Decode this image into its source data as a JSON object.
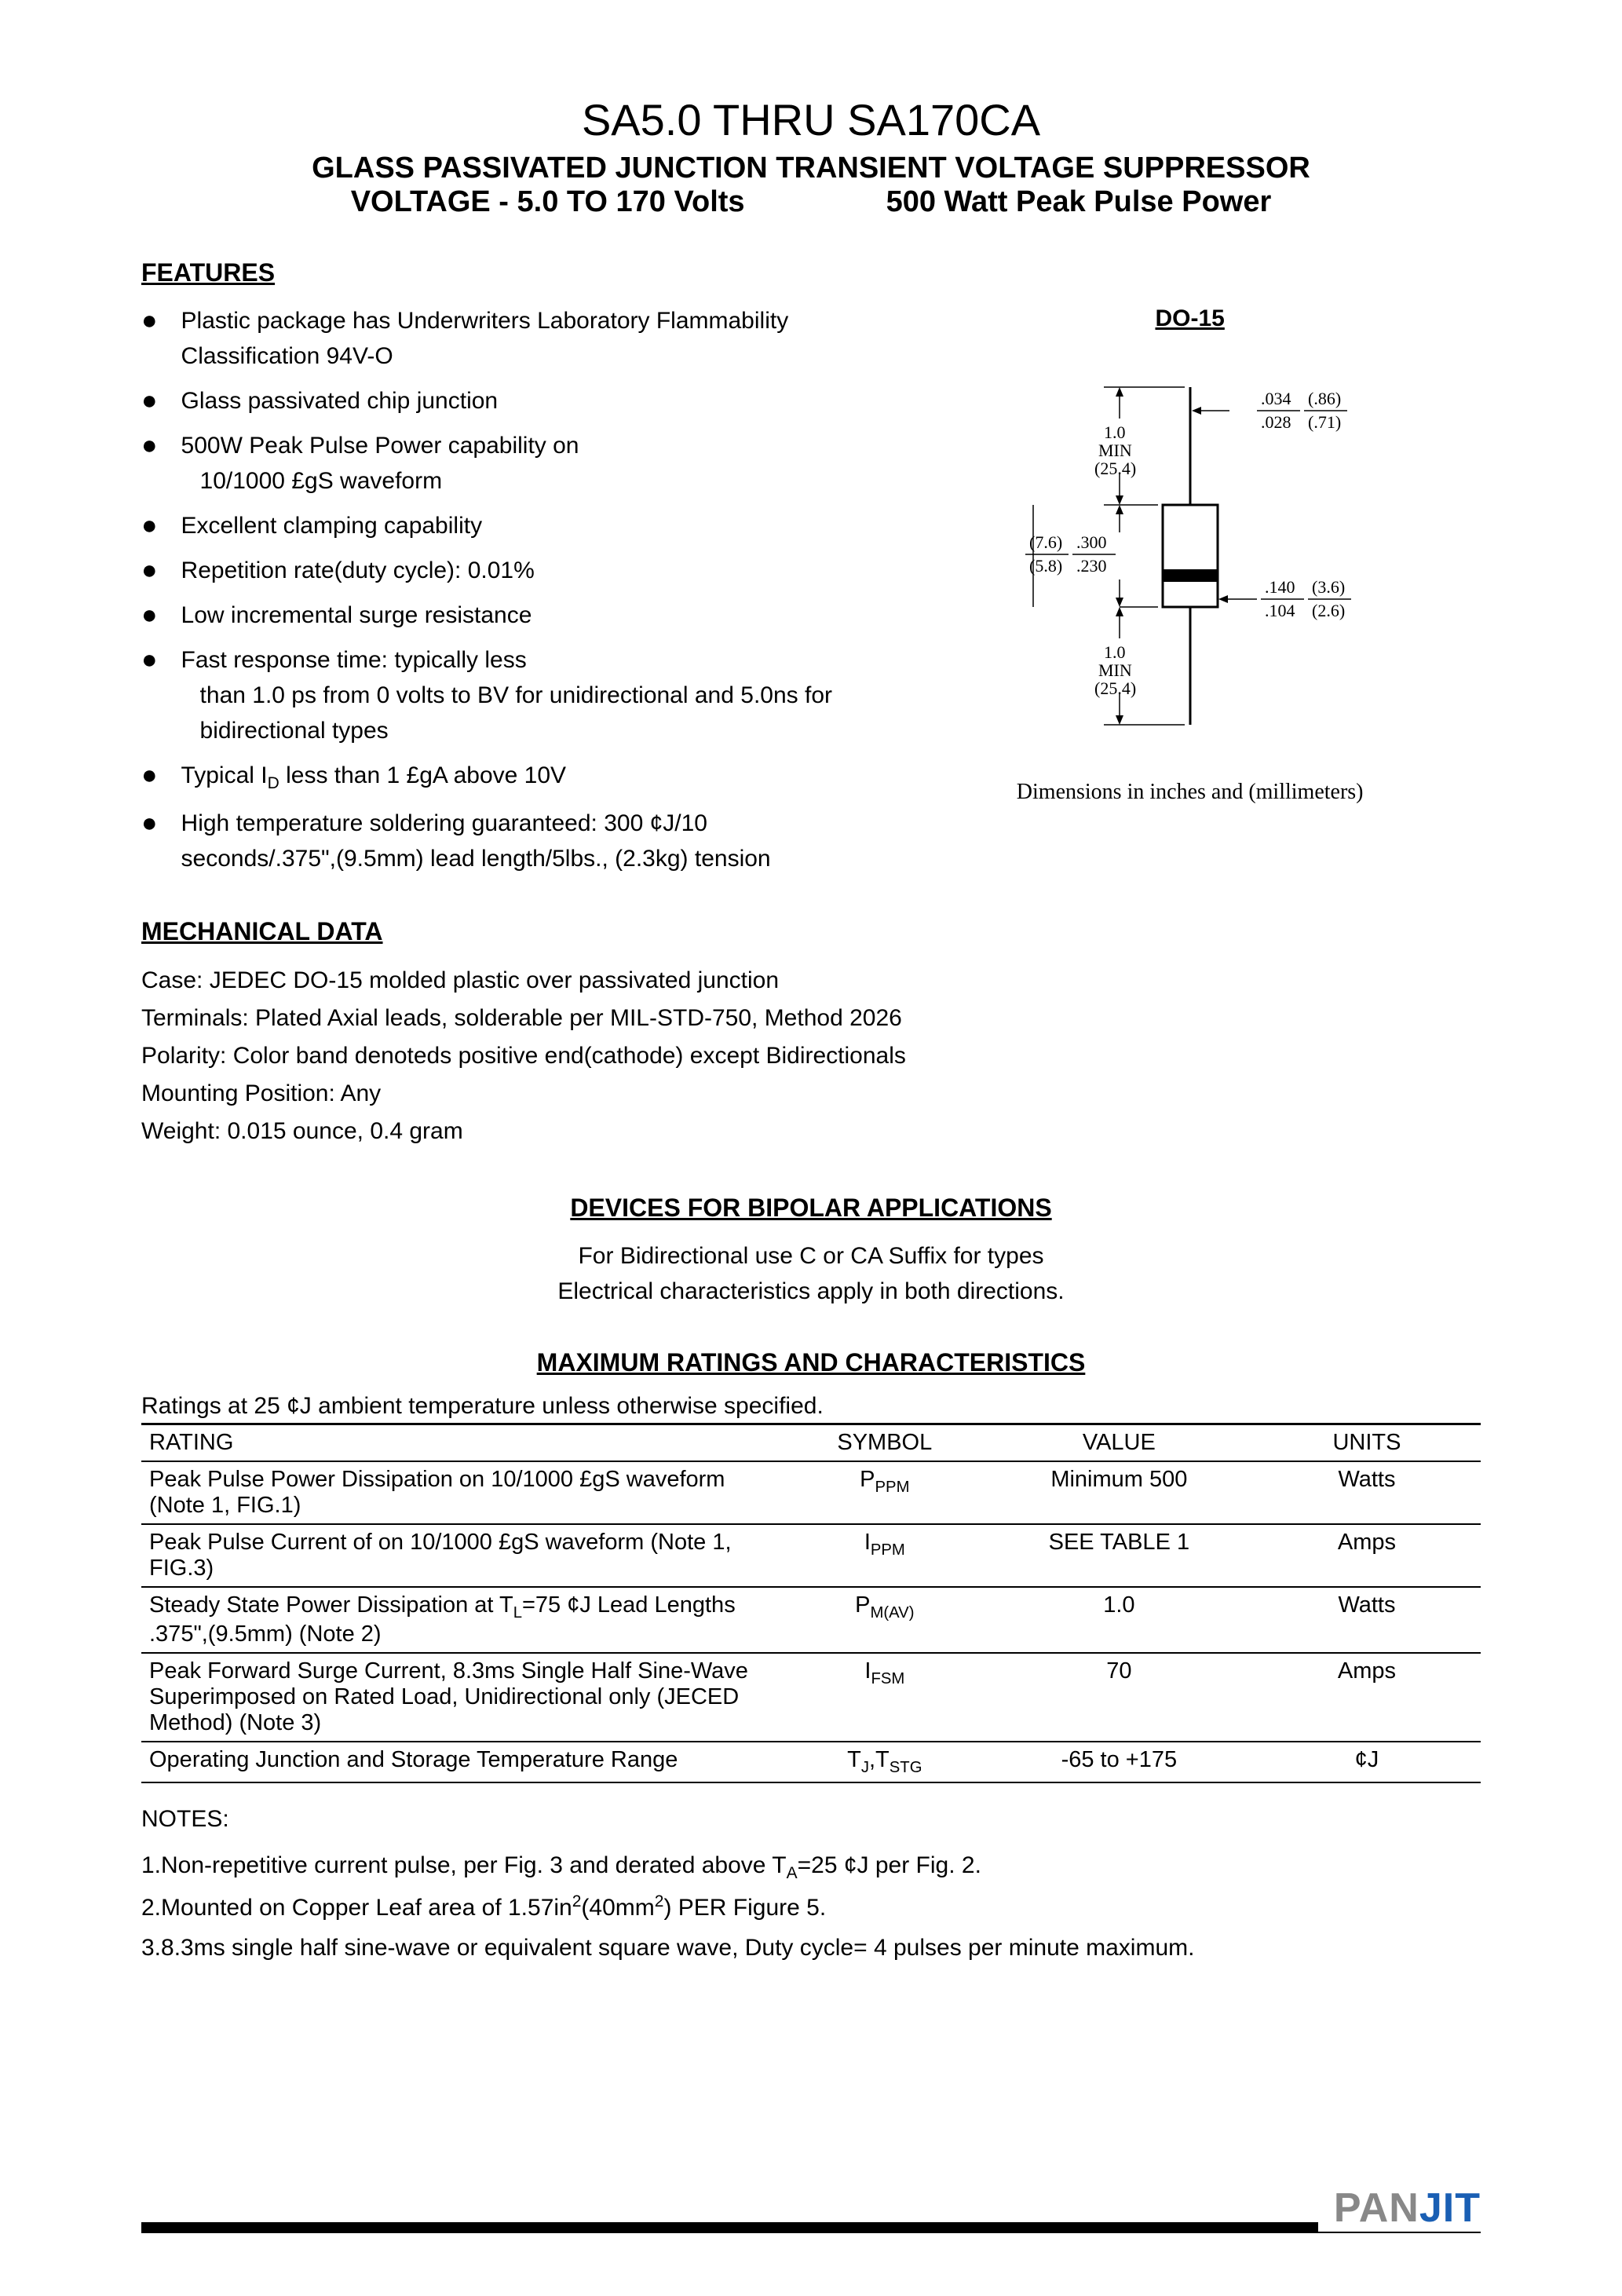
{
  "header": {
    "title": "SA5.0 THRU SA170CA",
    "subtitle1": "GLASS PASSIVATED JUNCTION TRANSIENT VOLTAGE SUPPRESSOR",
    "subtitle2a": "VOLTAGE - 5.0 TO 170 Volts",
    "subtitle2b": "500 Watt Peak Pulse Power"
  },
  "features": {
    "heading": "FEATURES",
    "items": [
      {
        "text": "Plastic package has Underwriters Laboratory Flammability Classification 94V-O"
      },
      {
        "text": "Glass passivated chip junction"
      },
      {
        "text": "500W Peak Pulse Power capability on",
        "indent": "10/1000 £gS  waveform"
      },
      {
        "text": "Excellent clamping capability"
      },
      {
        "text": "Repetition rate(duty cycle): 0.01%"
      },
      {
        "text": "Low incremental surge resistance"
      },
      {
        "text": "Fast response time: typically less",
        "indent": "than 1.0 ps from 0 volts to BV for unidirectional and 5.0ns for bidirectional types"
      },
      {
        "text": "Typical I<sub>D</sub> less than 1 £gA above 10V"
      },
      {
        "text": "High temperature soldering guaranteed: 300 ¢J/10 seconds/.375\",(9.5mm) lead length/5lbs., (2.3kg) tension"
      }
    ]
  },
  "package": {
    "label": "DO-15",
    "caption": "Dimensions in inches and (millimeters)",
    "dims": {
      "lead_len": "1.0\nMIN\n(25.4)",
      "lead_dia_top": ".034",
      "lead_dia_top_mm": "(.86)",
      "lead_dia_bot": ".028",
      "lead_dia_bot_mm": "(.71)",
      "body_len_top_mm": "(7.6)",
      "body_len_top": ".300",
      "body_len_bot_mm": "(5.8)",
      "body_len_bot": ".230",
      "body_dia_top": ".140",
      "body_dia_top_mm": "(3.6)",
      "body_dia_bot": ".104",
      "body_dia_bot_mm": "(2.6)"
    }
  },
  "mechanical": {
    "heading": "MECHANICAL DATA",
    "lines": [
      "Case: JEDEC DO-15 molded plastic over passivated junction",
      "Terminals: Plated Axial leads, solderable per MIL-STD-750, Method 2026",
      "Polarity: Color band denoteds positive end(cathode) except Bidirectionals",
      "Mounting Position: Any",
      "Weight: 0.015 ounce, 0.4 gram"
    ]
  },
  "bipolar": {
    "heading": "DEVICES FOR BIPOLAR APPLICATIONS",
    "line1": "For Bidirectional use C or CA Suffix for types",
    "line2": "Electrical characteristics apply in both directions."
  },
  "ratings": {
    "heading": "MAXIMUM RATINGS AND CHARACTERISTICS",
    "intro": "Ratings at 25 ¢J ambient temperature unless otherwise specified.",
    "columns": [
      "RATING",
      "SYMBOL",
      "VALUE",
      "UNITS"
    ],
    "rows": [
      {
        "rating": "Peak Pulse Power Dissipation on 10/1000 £gS waveform (Note 1, FIG.1)",
        "symbol": "P<sub>PPM</sub>",
        "value": "Minimum 500",
        "units": "Watts"
      },
      {
        "rating": "Peak Pulse Current of on 10/1000 £gS waveform (Note 1, FIG.3)",
        "symbol": "I<sub>PPM</sub>",
        "value": "SEE TABLE 1",
        "units": "Amps"
      },
      {
        "rating": "Steady State Power Dissipation at T<sub>L</sub>=75 ¢J Lead Lengths .375\",(9.5mm) (Note 2)",
        "symbol": "P<sub>M(AV)</sub>",
        "value": "1.0",
        "units": "Watts"
      },
      {
        "rating": "Peak Forward Surge Current, 8.3ms Single Half Sine-Wave Superimposed on Rated Load, Unidirectional only (JECED Method) (Note 3)",
        "symbol": "I<sub>FSM</sub>",
        "value": "70",
        "units": "Amps"
      },
      {
        "rating": "Operating Junction and Storage Temperature Range",
        "symbol": "T<sub>J</sub>,T<sub>STG</sub>",
        "value": "-65 to +175",
        "units": "¢J"
      }
    ]
  },
  "notes": {
    "heading": "NOTES:",
    "items": [
      "1.Non-repetitive current pulse, per Fig. 3 and derated above T<sub>A</sub>=25 ¢J per Fig. 2.",
      "2.Mounted on Copper Leaf area of 1.57in<sup>2</sup>(40mm<sup>2</sup>) PER Figure 5.",
      "3.8.3ms single half sine-wave or equivalent square wave, Duty cycle= 4 pulses per minute maximum."
    ]
  },
  "footer": {
    "logo_pan": "PAN",
    "logo_jit": "JIT"
  }
}
